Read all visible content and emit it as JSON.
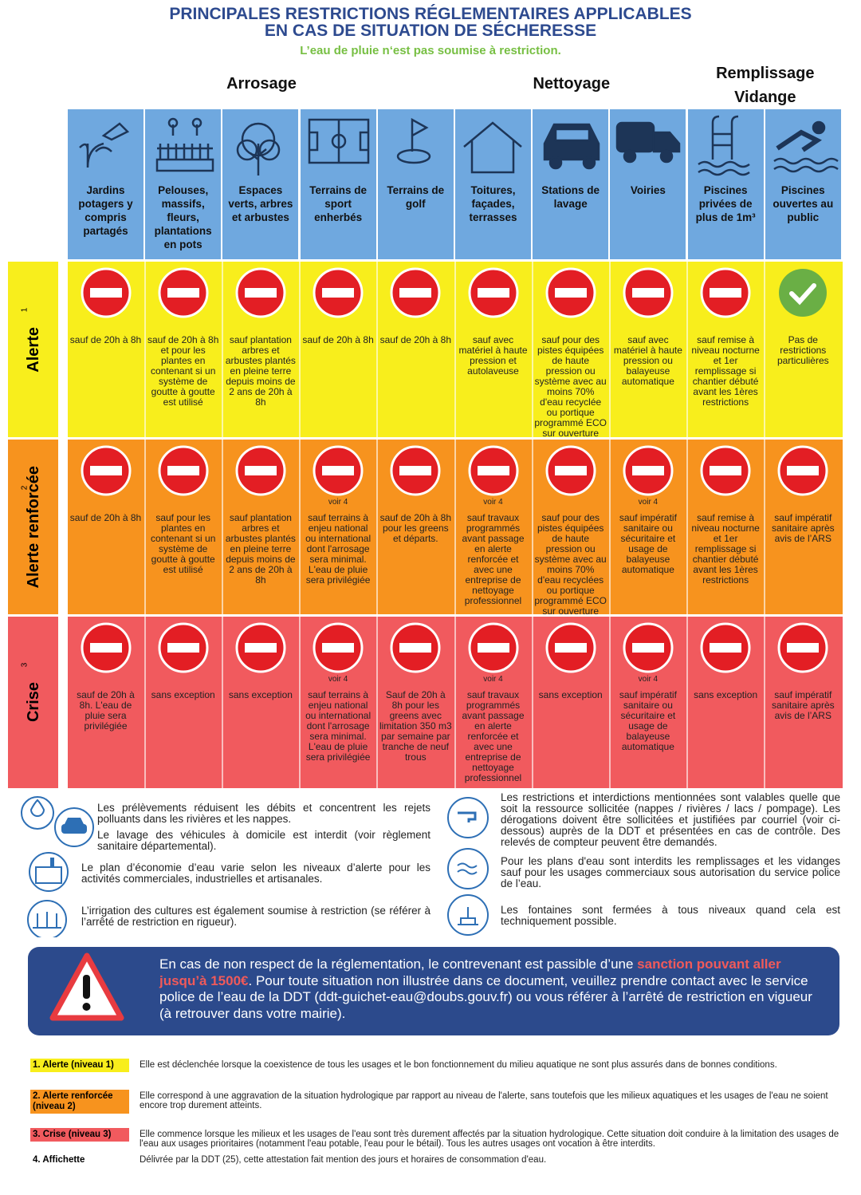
{
  "header": {
    "title": [
      "PRINCIPALES RESTRICTIONS RÉGLEMENTAIRES APPLICABLES",
      "EN CAS DE SITUATION DE SÉCHERESSE"
    ],
    "subtitle": "L’eau de pluie n‘est pas soumise à restriction."
  },
  "groups": [
    {
      "label": "Arrosage",
      "columns": [
        "Jardins potagers y compris partagés",
        "Pelouses, massifs, fleurs, plantations en pots",
        "Espaces verts, arbres et arbustes",
        "Terrains de sport enherbés",
        "Terrains de golf"
      ]
    },
    {
      "label": "Nettoyage",
      "columns": [
        "Toitures, façades, terrasses",
        "Stations de lavage",
        "Voiries"
      ]
    },
    {
      "label": "Remplissage Vidange",
      "columns": [
        "Piscines privées de plus de 1m³",
        "Piscines ouvertes au public"
      ]
    }
  ],
  "levels": [
    {
      "name": "Alerte",
      "number": "1",
      "color": "#f8ee1c",
      "cells": [
        {
          "icon": "forbidden",
          "text": "sauf de 20h à 8h"
        },
        {
          "icon": "forbidden",
          "text": "sauf de 20h à 8h et pour les plantes en contenant si un système de goutte à goutte est utilisé"
        },
        {
          "icon": "forbidden",
          "text": "sauf plantation arbres et arbustes plantés en pleine terre depuis moins de 2 ans de 20h à 8h"
        },
        {
          "icon": "forbidden",
          "text": "sauf de 20h à 8h"
        },
        {
          "icon": "forbidden",
          "text": "sauf de 20h à 8h"
        },
        {
          "icon": "forbidden",
          "text": "sauf avec matériel à haute pression et autolaveuse"
        },
        {
          "icon": "forbidden",
          "text": "sauf pour des pistes équipées de haute pression ou système avec au moins 70% d'eau recyclée ou portique programmé ECO sur ouverture partielle"
        },
        {
          "icon": "forbidden",
          "text": "sauf avec matériel à haute pression ou balayeuse automatique"
        },
        {
          "icon": "forbidden",
          "text": "sauf remise à niveau nocturne et 1er remplissage si chantier débuté avant les 1ères restrictions"
        },
        {
          "icon": "check",
          "text": "Pas de restrictions particulières"
        }
      ]
    },
    {
      "name": "Alerte renforcée",
      "number": "2",
      "color": "#f7931e",
      "cells": [
        {
          "icon": "forbidden",
          "text": "sauf de 20h à 8h"
        },
        {
          "icon": "forbidden",
          "text": "sauf pour les plantes en contenant si un système de goutte à goutte est utilisé"
        },
        {
          "icon": "forbidden",
          "text": "sauf plantation arbres et arbustes plantés en pleine terre depuis moins de 2 ans de 20h à 8h"
        },
        {
          "icon": "forbidden",
          "note": "voir 4",
          "text": "sauf terrains à enjeu national ou international dont l'arrosage sera minimal. L'eau de pluie sera privilégiée"
        },
        {
          "icon": "forbidden",
          "text": "sauf de 20h à 8h pour les greens et départs."
        },
        {
          "icon": "forbidden",
          "note": "voir 4",
          "text": "sauf travaux programmés avant passage en alerte renforcée et avec une entreprise de nettoyage professionnel"
        },
        {
          "icon": "forbidden",
          "text": "sauf pour des pistes équipées de haute pression ou système avec au moins 70% d'eau recyclées ou portique programmé ECO sur ouverture partielle"
        },
        {
          "icon": "forbidden",
          "note": "voir 4",
          "text": "sauf impératif sanitaire ou sécuritaire et usage de balayeuse automatique"
        },
        {
          "icon": "forbidden",
          "text": "sauf remise à niveau nocturne et 1er remplissage si chantier débuté avant les 1ères restrictions"
        },
        {
          "icon": "forbidden",
          "text": "sauf impératif sanitaire après avis de l’ARS"
        }
      ]
    },
    {
      "name": "Crise",
      "number": "3",
      "color": "#f15a5e",
      "cells": [
        {
          "icon": "forbidden",
          "text": "sauf de 20h à 8h. L'eau de pluie sera privilégiée"
        },
        {
          "icon": "forbidden",
          "text": "sans exception"
        },
        {
          "icon": "forbidden",
          "text": "sans exception"
        },
        {
          "icon": "forbidden",
          "note": "voir 4",
          "text": "sauf terrains à enjeu national ou international dont l'arrosage sera minimal. L'eau de pluie sera privilégiée"
        },
        {
          "icon": "forbidden",
          "text": "Sauf de 20h à 8h pour les greens avec limitation 350 m3 par semaine par tranche de neuf trous"
        },
        {
          "icon": "forbidden",
          "note": "voir 4",
          "text": "sauf travaux programmés avant passage en alerte renforcée et avec une entreprise de nettoyage professionnel"
        },
        {
          "icon": "forbidden",
          "text": "sans exception"
        },
        {
          "icon": "forbidden",
          "note": "voir 4",
          "text": "sauf impératif sanitaire ou sécuritaire et usage de balayeuse automatique"
        },
        {
          "icon": "forbidden",
          "text": "sans exception"
        },
        {
          "icon": "forbidden",
          "text": "sauf impératif sanitaire après avis de l’ARS"
        }
      ]
    }
  ],
  "info_left": [
    "Les prélèvements réduisent les débits et concentrent les rejets polluants dans les rivières et les nappes.",
    "Le lavage des véhicules à domicile est interdit (voir règlement sanitaire départemental).",
    "Le plan d’économie d’eau varie selon les niveaux d’alerte pour les activités commerciales, industrielles et artisanales.",
    "L’irrigation des cultures est également soumise à restriction (se référer à l’arrêté de restriction en rigueur)."
  ],
  "info_right": [
    "Les restrictions et interdictions mentionnées sont valables quelle que soit la ressource sollicitée (nappes / rivières / lacs / pompage). Les dérogations doivent être sollicitées et justifiées par courriel (voir ci-dessous) auprès de la DDT et présentées en cas de contrôle. Des relevés de compteur peuvent être demandés.",
    "Pour les plans d'eau sont interdits les remplissages et les vidanges sauf pour les usages commerciaux sous autorisation du service police de l’eau.",
    "Les fontaines sont fermées à tous niveaux quand cela est techniquement possible."
  ],
  "warning": [
    "En cas de non respect de la réglementation, le contrevenant est passible d’une ",
    "sanction pouvant aller jusqu’à 1500€",
    ". Pour toute situation non illustrée dans ce document, veuillez prendre contact avec le service police de l’eau de la DDT (ddt-guichet-eau@doubs.gouv.fr) ou vous référer à l’arrêté de restriction en vigueur (à retrouver dans votre mairie)."
  ],
  "legend": [
    {
      "label": "1. Alerte (niveau 1)",
      "color": "#f8ee1c",
      "text": "Elle est déclenchée lorsque la coexistence de tous les usages et le bon fonctionnement du milieu aquatique ne sont plus assurés dans de bonnes conditions."
    },
    {
      "label": "2. Alerte renforcée (niveau 2)",
      "color": "#f7931e",
      "text": "Elle correspond à une aggravation de la situation hydrologique par rapport au niveau de l'alerte, sans toutefois que les milieux aquatiques et les usages de l'eau ne soient encore trop durement atteints."
    },
    {
      "label": "3. Crise (niveau 3)",
      "color": "#f15a5e",
      "text": "Elle commence lorsque les milieux et les usages de l'eau sont très durement affectés par la situation hydrologique. Cette situation doit conduire à la limitation des usages de l'eau aux usages prioritaires (notamment l'eau potable, l'eau pour le bétail). Tous les autres usages ont vocation à être interdits."
    },
    {
      "label": "4. Affichette",
      "text": "Délivrée par la DDT (25), cette attestation fait mention des jours et horaires de consommation d'eau."
    }
  ]
}
